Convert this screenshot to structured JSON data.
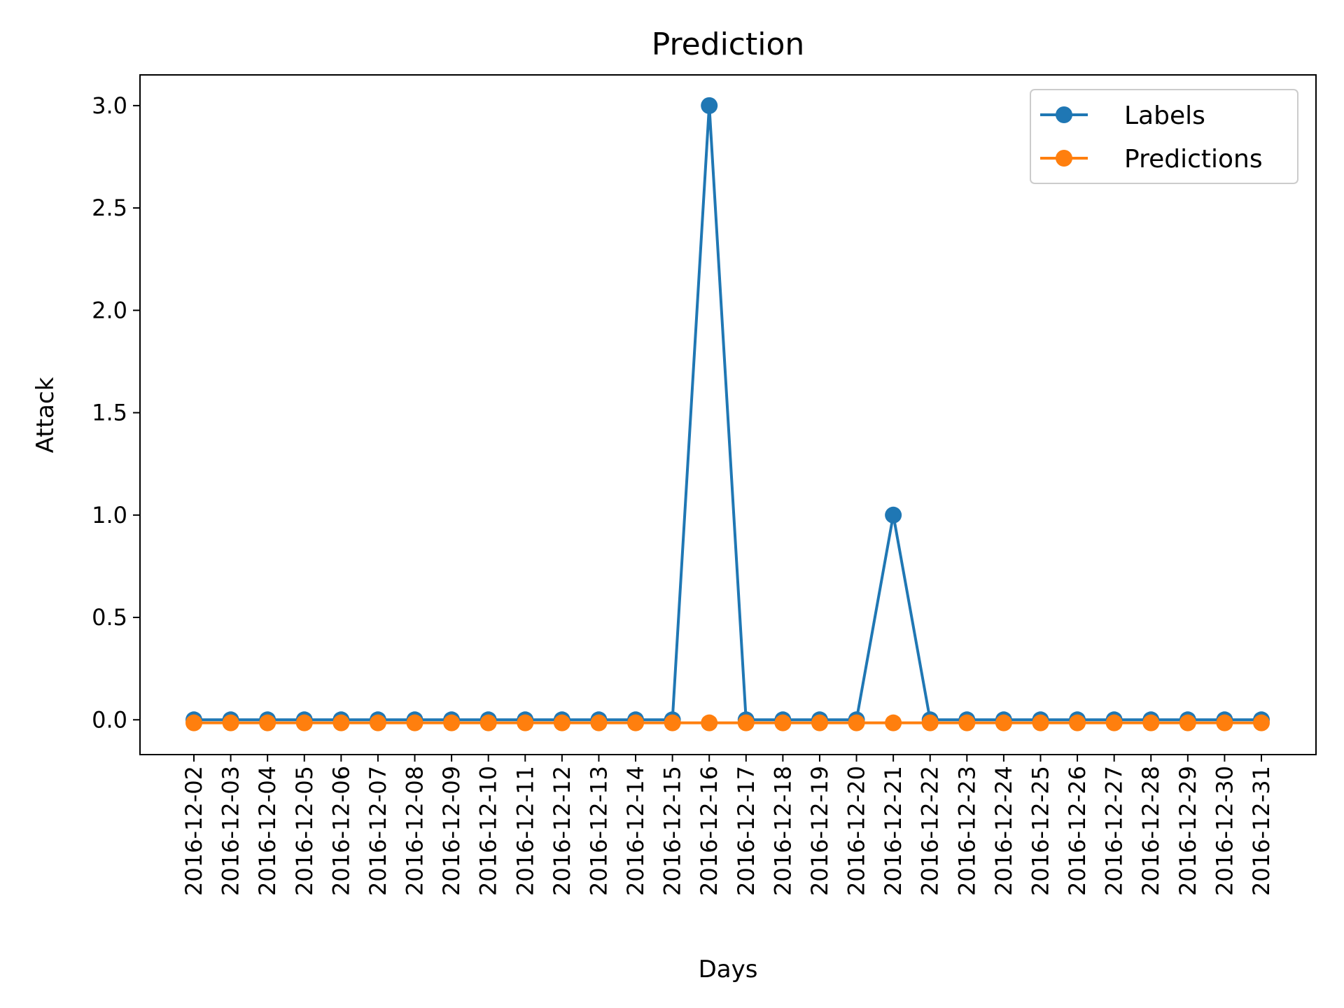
{
  "chart_data": {
    "type": "line",
    "title": "Prediction",
    "xlabel": "Days",
    "ylabel": "Attack",
    "x": [
      "2016-12-02",
      "2016-12-03",
      "2016-12-04",
      "2016-12-05",
      "2016-12-06",
      "2016-12-07",
      "2016-12-08",
      "2016-12-09",
      "2016-12-10",
      "2016-12-11",
      "2016-12-12",
      "2016-12-13",
      "2016-12-14",
      "2016-12-15",
      "2016-12-16",
      "2016-12-17",
      "2016-12-18",
      "2016-12-19",
      "2016-12-20",
      "2016-12-21",
      "2016-12-22",
      "2016-12-23",
      "2016-12-24",
      "2016-12-25",
      "2016-12-26",
      "2016-12-27",
      "2016-12-28",
      "2016-12-29",
      "2016-12-30",
      "2016-12-31"
    ],
    "yticks": [
      "0.0",
      "0.5",
      "1.0",
      "1.5",
      "2.0",
      "2.5",
      "3.0"
    ],
    "ylim": [
      -0.17,
      3.15
    ],
    "grid": false,
    "legend": "top-right",
    "series": [
      {
        "name": "Labels",
        "color": "#1f77b4",
        "marker": "circle",
        "values": [
          0,
          0,
          0,
          0,
          0,
          0,
          0,
          0,
          0,
          0,
          0,
          0,
          0,
          0,
          3,
          0,
          0,
          0,
          0,
          1,
          0,
          0,
          0,
          0,
          0,
          0,
          0,
          0,
          0,
          0
        ]
      },
      {
        "name": "Predictions",
        "color": "#ff7f0e",
        "marker": "circle",
        "values": [
          -0.015,
          -0.015,
          -0.015,
          -0.015,
          -0.015,
          -0.015,
          -0.015,
          -0.015,
          -0.015,
          -0.015,
          -0.015,
          -0.015,
          -0.015,
          -0.015,
          -0.015,
          -0.015,
          -0.015,
          -0.015,
          -0.015,
          -0.015,
          -0.015,
          -0.015,
          -0.015,
          -0.015,
          -0.015,
          -0.015,
          -0.015,
          -0.015,
          -0.015,
          -0.015
        ]
      }
    ]
  }
}
